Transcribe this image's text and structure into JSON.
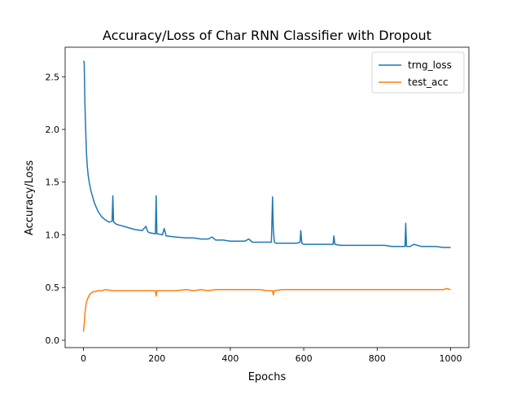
{
  "chart_data": {
    "type": "line",
    "title": "Accuracy/Loss of Char RNN Classifier with Dropout",
    "xlabel": "Epochs",
    "ylabel": "Accuracy/Loss",
    "xlim": [
      -50,
      1050
    ],
    "ylim": [
      -0.07,
      2.78
    ],
    "xticks": [
      0,
      200,
      400,
      600,
      800,
      1000
    ],
    "yticks": [
      0.0,
      0.5,
      1.0,
      1.5,
      2.0,
      2.5
    ],
    "xtick_labels": [
      "0",
      "200",
      "400",
      "600",
      "800",
      "1000"
    ],
    "ytick_labels": [
      "0.0",
      "0.5",
      "1.0",
      "1.5",
      "2.0",
      "2.5"
    ],
    "grid": false,
    "legend_position": "upper right",
    "series": [
      {
        "name": "trng_loss",
        "color": "#1f77b4",
        "x": [
          0,
          2,
          4,
          6,
          8,
          10,
          13,
          16,
          20,
          25,
          30,
          35,
          40,
          50,
          60,
          70,
          78,
          80,
          82,
          90,
          100,
          120,
          140,
          160,
          170,
          175,
          180,
          196,
          198,
          200,
          202,
          215,
          220,
          225,
          250,
          280,
          300,
          320,
          340,
          350,
          360,
          380,
          400,
          420,
          440,
          450,
          460,
          480,
          500,
          512,
          515,
          517,
          520,
          525,
          540,
          560,
          580,
          590,
          592,
          595,
          600,
          620,
          640,
          660,
          680,
          682,
          685,
          700,
          720,
          740,
          760,
          780,
          800,
          820,
          840,
          860,
          876,
          878,
          880,
          890,
          900,
          920,
          940,
          960,
          980,
          1000
        ],
        "y": [
          2.65,
          2.64,
          2.25,
          1.98,
          1.78,
          1.66,
          1.56,
          1.49,
          1.42,
          1.36,
          1.3,
          1.26,
          1.22,
          1.17,
          1.14,
          1.12,
          1.13,
          1.37,
          1.12,
          1.1,
          1.09,
          1.07,
          1.05,
          1.04,
          1.08,
          1.03,
          1.02,
          1.01,
          1.37,
          1.01,
          1.01,
          1.0,
          1.06,
          0.99,
          0.98,
          0.97,
          0.97,
          0.96,
          0.96,
          0.98,
          0.95,
          0.95,
          0.94,
          0.94,
          0.94,
          0.96,
          0.93,
          0.93,
          0.93,
          0.93,
          1.36,
          1.06,
          0.93,
          0.92,
          0.92,
          0.92,
          0.92,
          0.93,
          1.04,
          0.92,
          0.91,
          0.91,
          0.91,
          0.91,
          0.91,
          0.99,
          0.91,
          0.9,
          0.9,
          0.9,
          0.9,
          0.9,
          0.9,
          0.9,
          0.89,
          0.89,
          0.89,
          1.11,
          0.89,
          0.89,
          0.91,
          0.89,
          0.89,
          0.89,
          0.88,
          0.88
        ]
      },
      {
        "name": "test_acc",
        "color": "#ff7f0e",
        "x": [
          0,
          2,
          4,
          6,
          8,
          10,
          12,
          15,
          18,
          22,
          26,
          30,
          40,
          50,
          60,
          80,
          100,
          120,
          140,
          160,
          180,
          196,
          198,
          200,
          220,
          250,
          280,
          300,
          320,
          340,
          360,
          380,
          400,
          420,
          440,
          460,
          480,
          500,
          515,
          517,
          520,
          540,
          560,
          580,
          600,
          620,
          640,
          660,
          680,
          700,
          720,
          740,
          760,
          780,
          800,
          820,
          840,
          860,
          880,
          900,
          920,
          940,
          960,
          980,
          990,
          1000
        ],
        "y": [
          0.08,
          0.15,
          0.25,
          0.32,
          0.36,
          0.38,
          0.4,
          0.42,
          0.44,
          0.45,
          0.46,
          0.46,
          0.47,
          0.47,
          0.48,
          0.47,
          0.47,
          0.47,
          0.47,
          0.47,
          0.47,
          0.47,
          0.42,
          0.47,
          0.47,
          0.47,
          0.48,
          0.47,
          0.48,
          0.47,
          0.48,
          0.48,
          0.48,
          0.48,
          0.48,
          0.48,
          0.48,
          0.47,
          0.47,
          0.43,
          0.47,
          0.48,
          0.48,
          0.48,
          0.48,
          0.48,
          0.48,
          0.48,
          0.48,
          0.48,
          0.48,
          0.48,
          0.48,
          0.48,
          0.48,
          0.48,
          0.48,
          0.48,
          0.48,
          0.48,
          0.48,
          0.48,
          0.48,
          0.48,
          0.49,
          0.48
        ]
      }
    ]
  }
}
